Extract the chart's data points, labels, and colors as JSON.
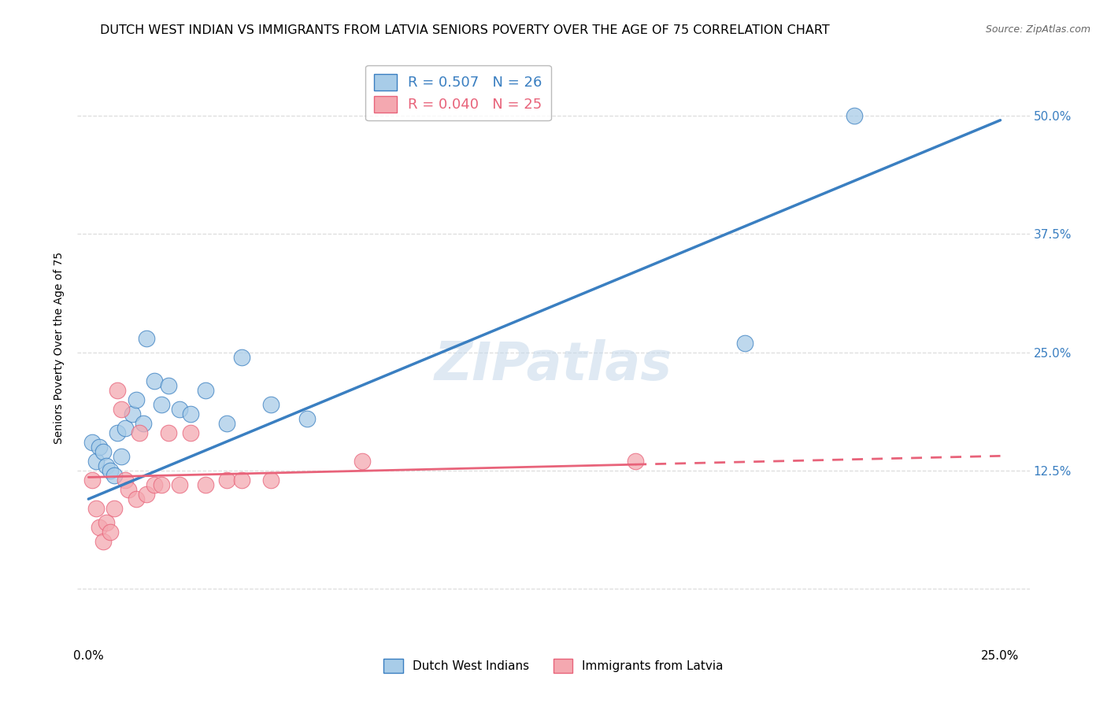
{
  "title": "DUTCH WEST INDIAN VS IMMIGRANTS FROM LATVIA SENIORS POVERTY OVER THE AGE OF 75 CORRELATION CHART",
  "source": "Source: ZipAtlas.com",
  "ylabel": "Seniors Poverty Over the Age of 75",
  "blue_R": 0.507,
  "blue_N": 26,
  "pink_R": 0.04,
  "pink_N": 25,
  "blue_color": "#a8cce8",
  "pink_color": "#f4a8b0",
  "blue_line_color": "#3a7fc1",
  "pink_line_color": "#e8637a",
  "watermark": "ZIPatlas",
  "blue_x": [
    0.001,
    0.002,
    0.003,
    0.004,
    0.005,
    0.006,
    0.007,
    0.008,
    0.009,
    0.01,
    0.012,
    0.013,
    0.015,
    0.016,
    0.018,
    0.02,
    0.022,
    0.025,
    0.028,
    0.032,
    0.038,
    0.042,
    0.05,
    0.06,
    0.18,
    0.21
  ],
  "blue_y": [
    0.155,
    0.135,
    0.15,
    0.145,
    0.13,
    0.125,
    0.12,
    0.165,
    0.14,
    0.17,
    0.185,
    0.2,
    0.175,
    0.265,
    0.22,
    0.195,
    0.215,
    0.19,
    0.185,
    0.21,
    0.175,
    0.245,
    0.195,
    0.18,
    0.26,
    0.5
  ],
  "pink_x": [
    0.001,
    0.002,
    0.003,
    0.004,
    0.005,
    0.006,
    0.007,
    0.008,
    0.009,
    0.01,
    0.011,
    0.013,
    0.014,
    0.016,
    0.018,
    0.02,
    0.022,
    0.025,
    0.028,
    0.032,
    0.038,
    0.042,
    0.05,
    0.075,
    0.15
  ],
  "pink_y": [
    0.115,
    0.085,
    0.065,
    0.05,
    0.07,
    0.06,
    0.085,
    0.21,
    0.19,
    0.115,
    0.105,
    0.095,
    0.165,
    0.1,
    0.11,
    0.11,
    0.165,
    0.11,
    0.165,
    0.11,
    0.115,
    0.115,
    0.115,
    0.135,
    0.135
  ],
  "legend_label_blue": "Dutch West Indians",
  "legend_label_pink": "Immigrants from Latvia",
  "title_fontsize": 11.5,
  "source_fontsize": 9,
  "axis_label_fontsize": 10,
  "xlim_min": -0.003,
  "xlim_max": 0.258,
  "ylim_min": -0.06,
  "ylim_max": 0.57,
  "ytick_positions": [
    0.0,
    0.125,
    0.25,
    0.375,
    0.5
  ],
  "ytick_labels_right": [
    "",
    "12.5%",
    "25.0%",
    "37.5%",
    "50.0%"
  ],
  "xtick_positions": [
    0.0,
    0.05,
    0.1,
    0.15,
    0.2,
    0.25
  ],
  "xtick_labels": [
    "0.0%",
    "",
    "",
    "",
    "",
    "25.0%"
  ],
  "grid_color": "#dddddd",
  "blue_line_forced_slope": 1.6,
  "blue_line_forced_intercept": 0.095,
  "pink_line_forced_slope": 0.09,
  "pink_line_forced_intercept": 0.118
}
